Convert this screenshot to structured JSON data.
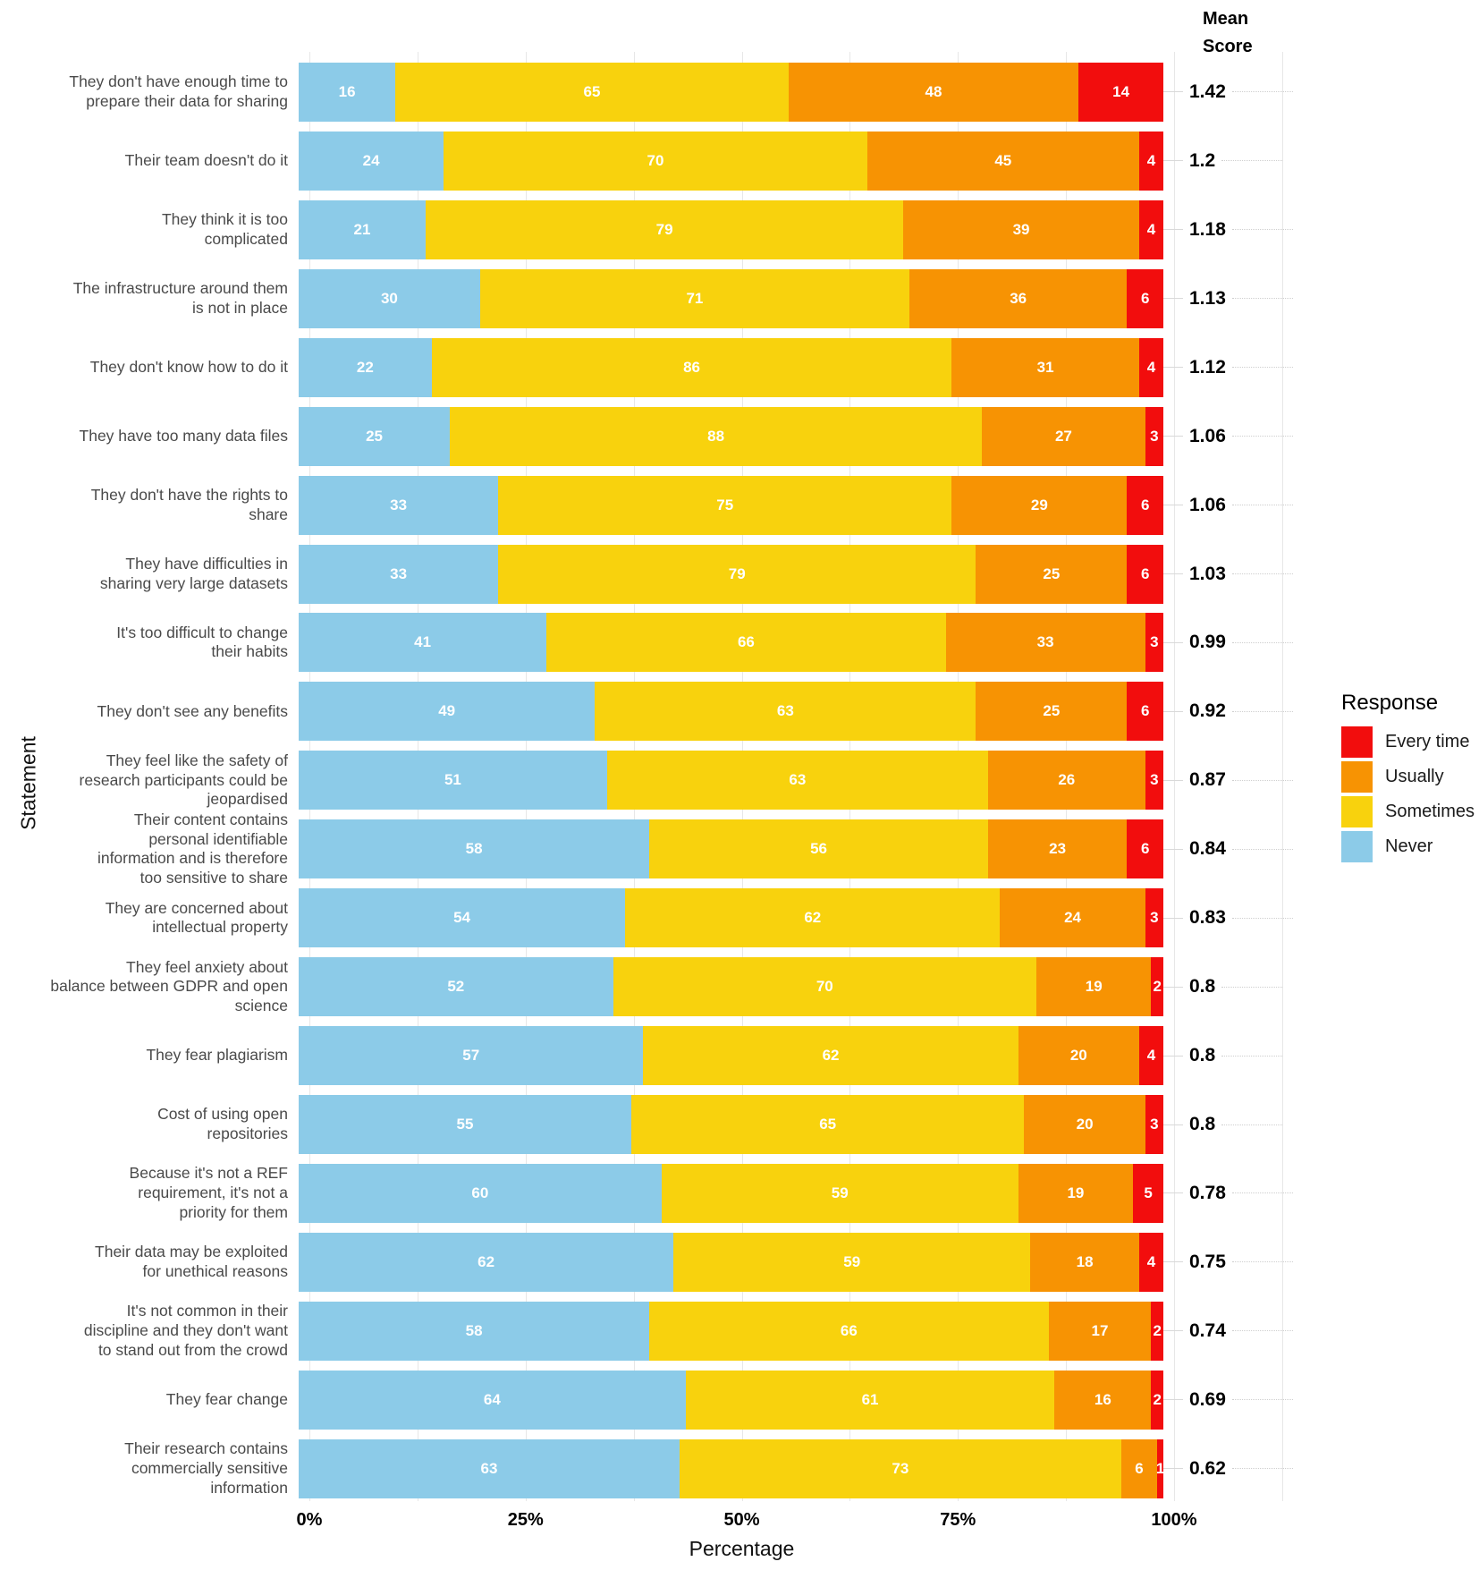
{
  "mean_score_header": "Mean Score",
  "y_axis_label": "Statement",
  "x_axis_label": "Percentage",
  "x_ticks": [
    {
      "label": "0%",
      "pct": 0
    },
    {
      "label": "25%",
      "pct": 25
    },
    {
      "label": "50%",
      "pct": 50
    },
    {
      "label": "75%",
      "pct": 75
    },
    {
      "label": "100%",
      "pct": 100
    }
  ],
  "legend": {
    "title": "Response",
    "items": [
      {
        "label": "Every time",
        "color": "#F20D0D"
      },
      {
        "label": "Usually",
        "color": "#F79303"
      },
      {
        "label": "Sometimes",
        "color": "#F8D20D"
      },
      {
        "label": "Never",
        "color": "#8CCBE8"
      }
    ]
  },
  "chart_data": {
    "type": "bar",
    "orientation": "horizontal",
    "stacked": true,
    "title": "",
    "xlabel": "Percentage",
    "ylabel": "Statement",
    "xlim": [
      0,
      100
    ],
    "grid": true,
    "legend_position": "right",
    "total_per_row": 143,
    "stack_order": [
      "never",
      "sometimes",
      "usually",
      "every_time"
    ],
    "colors": {
      "never": "#8CCBE8",
      "sometimes": "#F8D20D",
      "usually": "#F79303",
      "every_time": "#F20D0D"
    },
    "series_names": {
      "never": "Never",
      "sometimes": "Sometimes",
      "usually": "Usually",
      "every_time": "Every time"
    },
    "rows": [
      {
        "statement": "They don't have enough time to\nprepare their data for sharing",
        "values": {
          "never": 16,
          "sometimes": 65,
          "usually": 48,
          "every_time": 14
        },
        "mean": "1.42"
      },
      {
        "statement": "Their team doesn't do it",
        "values": {
          "never": 24,
          "sometimes": 70,
          "usually": 45,
          "every_time": 4
        },
        "mean": "1.2"
      },
      {
        "statement": "They think it is too\ncomplicated",
        "values": {
          "never": 21,
          "sometimes": 79,
          "usually": 39,
          "every_time": 4
        },
        "mean": "1.18"
      },
      {
        "statement": "The infrastructure around them\nis not in place",
        "values": {
          "never": 30,
          "sometimes": 71,
          "usually": 36,
          "every_time": 6
        },
        "mean": "1.13"
      },
      {
        "statement": "They don't know how to do it",
        "values": {
          "never": 22,
          "sometimes": 86,
          "usually": 31,
          "every_time": 4
        },
        "mean": "1.12"
      },
      {
        "statement": "They have too many data files",
        "values": {
          "never": 25,
          "sometimes": 88,
          "usually": 27,
          "every_time": 3
        },
        "mean": "1.06"
      },
      {
        "statement": "They don't have the rights to\nshare",
        "values": {
          "never": 33,
          "sometimes": 75,
          "usually": 29,
          "every_time": 6
        },
        "mean": "1.06"
      },
      {
        "statement": "They have difficulties in\nsharing very large datasets",
        "values": {
          "never": 33,
          "sometimes": 79,
          "usually": 25,
          "every_time": 6
        },
        "mean": "1.03"
      },
      {
        "statement": "It's too difficult to change\ntheir habits",
        "values": {
          "never": 41,
          "sometimes": 66,
          "usually": 33,
          "every_time": 3
        },
        "mean": "0.99"
      },
      {
        "statement": "They don't see any benefits",
        "values": {
          "never": 49,
          "sometimes": 63,
          "usually": 25,
          "every_time": 6
        },
        "mean": "0.92"
      },
      {
        "statement": "They feel like the safety of\nresearch participants could be\njeopardised",
        "values": {
          "never": 51,
          "sometimes": 63,
          "usually": 26,
          "every_time": 3
        },
        "mean": "0.87"
      },
      {
        "statement": "Their content contains\npersonal identifiable\ninformation and is therefore\ntoo sensitive to share",
        "values": {
          "never": 58,
          "sometimes": 56,
          "usually": 23,
          "every_time": 6
        },
        "mean": "0.84"
      },
      {
        "statement": "They are concerned about\nintellectual property",
        "values": {
          "never": 54,
          "sometimes": 62,
          "usually": 24,
          "every_time": 3
        },
        "mean": "0.83"
      },
      {
        "statement": "They feel anxiety about\nbalance between GDPR and open\nscience",
        "values": {
          "never": 52,
          "sometimes": 70,
          "usually": 19,
          "every_time": 2
        },
        "mean": "0.8"
      },
      {
        "statement": "They fear plagiarism",
        "values": {
          "never": 57,
          "sometimes": 62,
          "usually": 20,
          "every_time": 4
        },
        "mean": "0.8"
      },
      {
        "statement": "Cost of using open\nrepositories",
        "values": {
          "never": 55,
          "sometimes": 65,
          "usually": 20,
          "every_time": 3
        },
        "mean": "0.8"
      },
      {
        "statement": "Because it's not a REF\nrequirement, it's not a\npriority for them",
        "values": {
          "never": 60,
          "sometimes": 59,
          "usually": 19,
          "every_time": 5
        },
        "mean": "0.78"
      },
      {
        "statement": "Their data may be exploited\nfor unethical reasons",
        "values": {
          "never": 62,
          "sometimes": 59,
          "usually": 18,
          "every_time": 4
        },
        "mean": "0.75"
      },
      {
        "statement": "It's not common in their\ndiscipline and they don't want\nto stand out from the crowd",
        "values": {
          "never": 58,
          "sometimes": 66,
          "usually": 17,
          "every_time": 2
        },
        "mean": "0.74"
      },
      {
        "statement": "They fear change",
        "values": {
          "never": 64,
          "sometimes": 61,
          "usually": 16,
          "every_time": 2
        },
        "mean": "0.69"
      },
      {
        "statement": "Their research contains\ncommercially sensitive\ninformation",
        "values": {
          "never": 63,
          "sometimes": 73,
          "usually": 6,
          "every_time": 1
        },
        "mean": "0.62"
      }
    ]
  }
}
